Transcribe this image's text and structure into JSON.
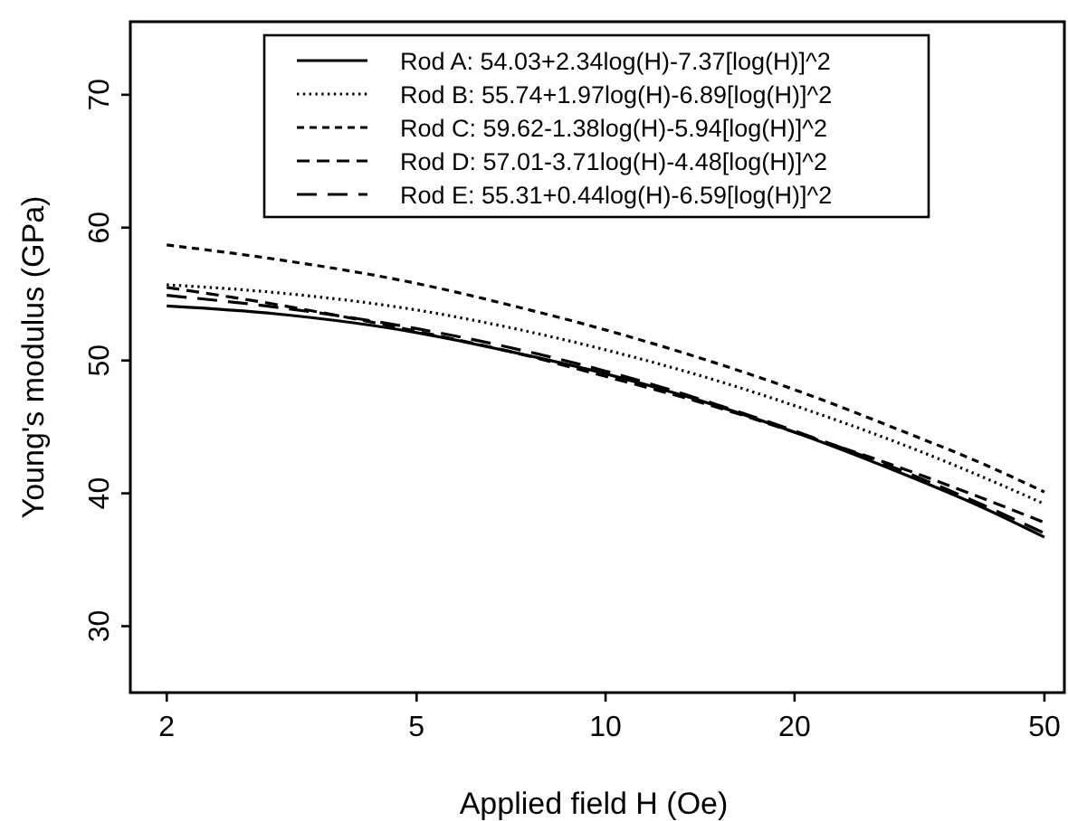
{
  "chart_data": {
    "type": "line",
    "xlabel": "Applied field H (Oe)",
    "ylabel": "Young's modulus (GPa)",
    "log": "x",
    "x": [
      2,
      3,
      5,
      7,
      10,
      15,
      20,
      30,
      40,
      50
    ],
    "xlim": [
      1.75,
      53.8
    ],
    "xticks": [
      2,
      5,
      10,
      20,
      50
    ],
    "ylim": [
      25,
      75.5
    ],
    "yticks": [
      30,
      40,
      50,
      60,
      70
    ],
    "grid": false,
    "legend": "top",
    "marker": "none",
    "series": [
      {
        "name": "Rod A: 54.03+2.34log(H)-7.37[log(H)]^2",
        "color": "#000000",
        "line_style": "solid",
        "values": [
          54.1,
          53.5,
          52.1,
          50.7,
          49.0,
          46.6,
          44.6,
          41.4,
          38.9,
          36.7
        ]
      },
      {
        "name": "Rod B: 55.74+1.97log(H)-6.89[log(H)]^2",
        "color": "#000000",
        "line_style": "dotted",
        "values": [
          55.7,
          55.1,
          53.8,
          52.5,
          50.8,
          48.5,
          46.6,
          43.6,
          41.2,
          39.2
        ]
      },
      {
        "name": "Rod C: 59.62-1.38log(H)-5.94[log(H)]^2",
        "color": "#000000",
        "line_style": "dashed",
        "values": [
          58.7,
          57.6,
          55.8,
          54.2,
          52.3,
          49.8,
          47.8,
          44.6,
          42.2,
          40.1
        ]
      },
      {
        "name": "Rod D: 57.01-3.71log(H)-4.48[log(H)]^2",
        "color": "#000000",
        "line_style": "dashed",
        "values": [
          55.5,
          54.2,
          52.2,
          50.7,
          48.8,
          46.5,
          44.6,
          41.8,
          39.6,
          37.8
        ]
      },
      {
        "name": "Rod E: 55.31+0.44log(H)-6.59[log(H)]^2",
        "color": "#000000",
        "line_style": "dashed",
        "values": [
          54.9,
          54.0,
          52.4,
          51.0,
          49.2,
          46.7,
          44.7,
          41.6,
          39.1,
          37.0
        ]
      }
    ]
  }
}
